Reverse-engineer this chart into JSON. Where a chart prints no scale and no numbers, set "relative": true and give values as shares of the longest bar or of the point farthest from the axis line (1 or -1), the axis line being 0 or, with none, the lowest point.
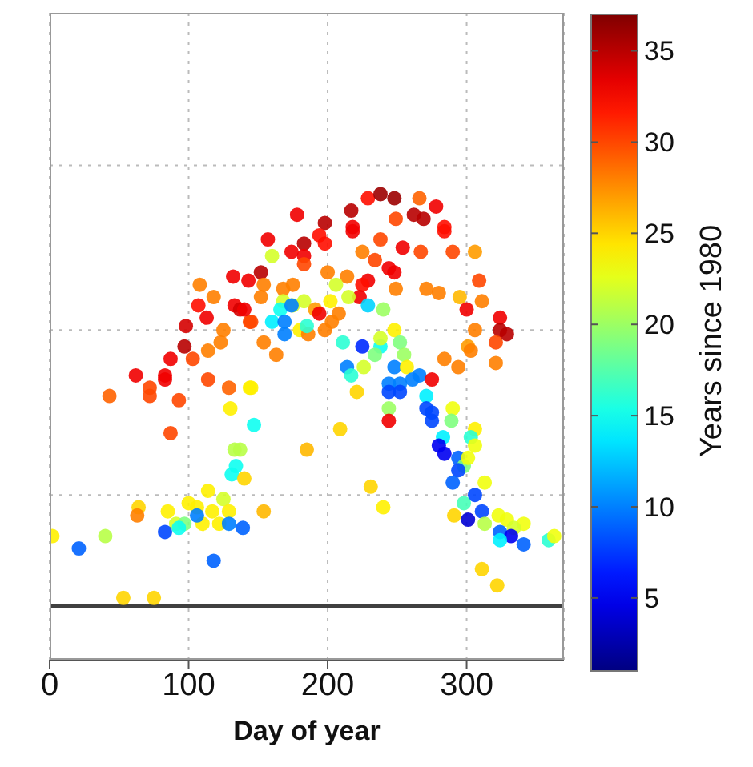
{
  "chart_data": {
    "type": "scatter",
    "xlabel": "Day of year",
    "clabel": "Years since 1980",
    "relative": true,
    "grid": true,
    "marker": "circle",
    "xlim": [
      0,
      370
    ],
    "xticks": [
      0,
      100,
      200,
      300
    ],
    "clim": [
      1,
      37
    ],
    "cticks": [
      5,
      10,
      15,
      20,
      25,
      30,
      35
    ],
    "ref_lines": [
      {
        "axis": "y",
        "value": 0,
        "color": "#404040"
      }
    ],
    "x": [
      132,
      143,
      108,
      118,
      107,
      133,
      137,
      113,
      144,
      98,
      125,
      123,
      97,
      87,
      103,
      114,
      62,
      83,
      83,
      72,
      43,
      72,
      93,
      114,
      129,
      144,
      130,
      87,
      147,
      229,
      238,
      248,
      266,
      278,
      217,
      178,
      198,
      218,
      218,
      262,
      269,
      249,
      284,
      284,
      238,
      157,
      183,
      194,
      198,
      254,
      174,
      183,
      225,
      267,
      290,
      306,
      160,
      234,
      244,
      248,
      183,
      152,
      200,
      214,
      229,
      309,
      154,
      168,
      175,
      206,
      225,
      249,
      271,
      280,
      223,
      152,
      168,
      175,
      183,
      202,
      215,
      295,
      311,
      300,
      140,
      229,
      166,
      174,
      191,
      240,
      194,
      208,
      203,
      160,
      169,
      324,
      324,
      329,
      306,
      180,
      169,
      154,
      186,
      198,
      248,
      211,
      225,
      238,
      252,
      301,
      321,
      145,
      185,
      163,
      238,
      234,
      255,
      226,
      214,
      217,
      248,
      257,
      284,
      294,
      303,
      321,
      244,
      252,
      261,
      266,
      275,
      244,
      252,
      271,
      145,
      221,
      244,
      271,
      275,
      275,
      290,
      244,
      289,
      209,
      306,
      283,
      303,
      306,
      280,
      284,
      185,
      294,
      298,
      301,
      294,
      313,
      290,
      231,
      306,
      133,
      137,
      134,
      131,
      140,
      114,
      125,
      100,
      106,
      64,
      63,
      85,
      117,
      129,
      154,
      91,
      97,
      110,
      122,
      106,
      129,
      83,
      93,
      139,
      2,
      40,
      21,
      118,
      53,
      75,
      240,
      298,
      311,
      291,
      301,
      313,
      323,
      329,
      341,
      334,
      324,
      332,
      324,
      341,
      359,
      363,
      311,
      322
    ],
    "values": [
      0.8,
      0.79,
      0.78,
      0.75,
      0.73,
      0.73,
      0.72,
      0.7,
      0.69,
      0.68,
      0.67,
      0.64,
      0.63,
      0.6,
      0.6,
      0.62,
      0.56,
      0.56,
      0.55,
      0.53,
      0.51,
      0.51,
      0.5,
      0.55,
      0.53,
      0.53,
      0.48,
      0.42,
      0.44,
      0.99,
      1,
      0.99,
      0.99,
      0.97,
      0.96,
      0.95,
      0.93,
      0.92,
      0.91,
      0.95,
      0.94,
      0.94,
      0.92,
      0.91,
      0.89,
      0.89,
      0.88,
      0.9,
      0.88,
      0.87,
      0.86,
      0.85,
      0.86,
      0.86,
      0.86,
      0.86,
      0.85,
      0.84,
      0.82,
      0.81,
      0.83,
      0.81,
      0.81,
      0.8,
      0.79,
      0.79,
      0.78,
      0.77,
      0.78,
      0.78,
      0.78,
      0.77,
      0.77,
      0.76,
      0.75,
      0.75,
      0.74,
      0.73,
      0.74,
      0.74,
      0.75,
      0.75,
      0.74,
      0.72,
      0.72,
      0.73,
      0.72,
      0.73,
      0.72,
      0.72,
      0.71,
      0.71,
      0.69,
      0.69,
      0.69,
      0.7,
      0.67,
      0.66,
      0.67,
      0.67,
      0.66,
      0.64,
      0.66,
      0.67,
      0.67,
      0.64,
      0.63,
      0.63,
      0.64,
      0.63,
      0.64,
      0.69,
      0.68,
      0.61,
      0.65,
      0.61,
      0.61,
      0.58,
      0.58,
      0.56,
      0.58,
      0.58,
      0.6,
      0.58,
      0.62,
      0.59,
      0.54,
      0.54,
      0.55,
      0.56,
      0.55,
      0.52,
      0.52,
      0.51,
      0.53,
      0.52,
      0.48,
      0.48,
      0.47,
      0.45,
      0.48,
      0.45,
      0.45,
      0.43,
      0.43,
      0.41,
      0.41,
      0.39,
      0.39,
      0.37,
      0.38,
      0.36,
      0.34,
      0.36,
      0.33,
      0.3,
      0.3,
      0.29,
      0.27,
      0.38,
      0.38,
      0.34,
      0.32,
      0.31,
      0.28,
      0.26,
      0.25,
      0.24,
      0.24,
      0.22,
      0.23,
      0.23,
      0.23,
      0.23,
      0.2,
      0.2,
      0.2,
      0.2,
      0.22,
      0.2,
      0.18,
      0.19,
      0.19,
      0.17,
      0.17,
      0.14,
      0.11,
      0.02,
      0.02,
      0.24,
      0.25,
      0.23,
      0.22,
      0.21,
      0.2,
      0.22,
      0.21,
      0.2,
      0.19,
      0.18,
      0.17,
      0.16,
      0.15,
      0.16,
      0.17,
      0.09,
      0.05
    ],
    "cvalues": [
      33,
      33,
      28,
      28,
      32,
      33,
      34,
      33,
      30,
      34,
      28,
      28,
      35,
      33,
      30,
      28,
      33,
      33,
      33,
      30,
      29,
      30,
      30,
      30,
      29,
      24,
      24,
      30,
      15,
      32,
      36,
      36,
      29,
      33,
      35,
      33,
      35,
      33,
      33,
      35,
      35,
      30,
      32,
      32,
      30,
      33,
      35,
      32,
      32,
      33,
      33,
      33,
      28,
      30,
      30,
      27,
      22,
      30,
      33,
      33,
      30,
      35,
      28,
      28,
      33,
      30,
      28,
      28,
      28,
      22,
      32,
      28,
      28,
      28,
      33,
      28,
      22,
      22,
      22,
      24,
      22,
      26,
      28,
      33,
      33,
      13,
      15,
      10,
      27,
      20,
      33,
      28,
      28,
      14,
      10,
      33,
      35,
      35,
      28,
      24,
      10,
      28,
      28,
      28,
      24,
      16,
      7,
      15,
      19,
      27,
      30,
      30,
      16,
      28,
      22,
      19,
      20,
      22,
      10,
      16,
      10,
      24,
      28,
      28,
      28,
      28,
      10,
      10,
      10,
      10,
      33,
      8,
      8,
      14,
      24,
      25,
      20,
      8,
      8,
      8,
      23,
      33,
      19,
      25,
      24,
      14,
      16,
      23,
      5,
      5,
      26,
      9,
      19,
      23,
      8,
      23,
      9,
      25,
      8,
      21,
      21,
      15,
      15,
      25,
      24,
      22,
      24,
      24,
      25,
      28,
      24,
      24,
      24,
      26,
      22,
      19,
      24,
      24,
      10,
      10,
      8,
      15,
      9,
      24,
      21,
      9,
      9,
      25,
      25,
      24,
      17,
      8,
      25,
      4,
      21,
      23,
      23,
      23,
      22,
      9,
      5,
      14,
      9,
      16,
      23,
      25,
      25
    ]
  }
}
